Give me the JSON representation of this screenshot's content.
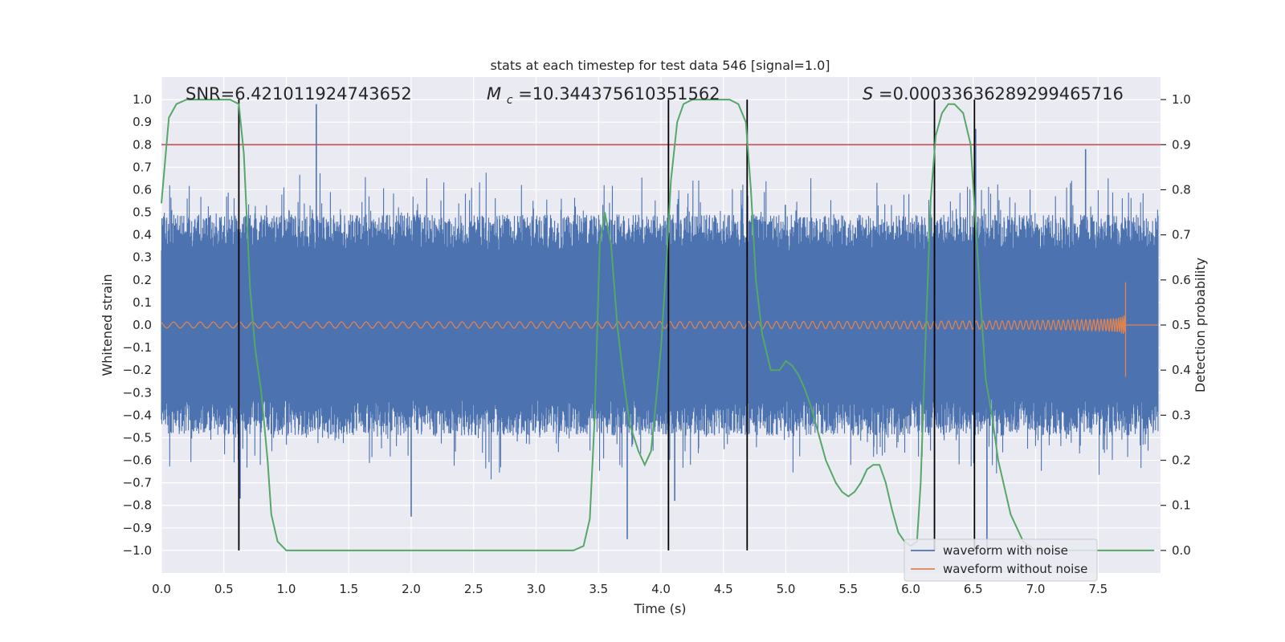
{
  "chart_data": {
    "type": "line",
    "title": "stats at each timestep for test data 546 [signal=1.0]",
    "xlabel": "Time (s)",
    "ylabel": "Whitened strain",
    "y2label": "Detection probability",
    "xlim": [
      0.0,
      8.0
    ],
    "ylim": [
      -1.1,
      1.1
    ],
    "y2lim": [
      -0.05,
      1.05
    ],
    "xticks": [
      0.0,
      0.5,
      1.0,
      1.5,
      2.0,
      2.5,
      3.0,
      3.5,
      4.0,
      4.5,
      5.0,
      5.5,
      6.0,
      6.5,
      7.0,
      7.5
    ],
    "xtick_labels": [
      "0.0",
      "0.5",
      "1.0",
      "1.5",
      "2.0",
      "2.5",
      "3.0",
      "3.5",
      "4.0",
      "4.5",
      "5.0",
      "5.5",
      "6.0",
      "6.5",
      "7.0",
      "7.5"
    ],
    "yticks": [
      1.0,
      0.9,
      0.8,
      0.7,
      0.6,
      0.5,
      0.4,
      0.3,
      0.2,
      0.1,
      0.0,
      -0.1,
      -0.2,
      -0.3,
      -0.4,
      -0.5,
      -0.6,
      -0.7,
      -0.8,
      -0.9,
      -1.0
    ],
    "ytick_labels": [
      "1.0",
      "0.9",
      "0.8",
      "0.7",
      "0.6",
      "0.5",
      "0.4",
      "0.3",
      "0.2",
      "0.1",
      "0.0",
      "−0.1",
      "−0.2",
      "−0.3",
      "−0.4",
      "−0.5",
      "−0.6",
      "−0.7",
      "−0.8",
      "−0.9",
      "−1.0"
    ],
    "y2ticks": [
      1.0,
      0.9,
      0.8,
      0.7,
      0.6,
      0.5,
      0.4,
      0.3,
      0.2,
      0.1,
      0.0
    ],
    "y2tick_labels": [
      "1.0",
      "0.9",
      "0.8",
      "0.7",
      "0.6",
      "0.5",
      "0.4",
      "0.3",
      "0.2",
      "0.1",
      "0.0"
    ],
    "grid": true,
    "annotations": {
      "snr": "SNR=6.421011924743652",
      "mc_symbol": "M",
      "mc_sub": "c",
      "mc_value": "=10.344375610351562",
      "s_symbol": "S",
      "s_value": "=0.00033636289299465716"
    },
    "threshold": 0.9,
    "vlines_x": [
      0.62,
      4.06,
      4.69,
      6.19,
      6.51
    ],
    "series": [
      {
        "name": "waveform with noise",
        "axis": "left",
        "color": "#4c72b0",
        "description": "noise band ~±0.45 with spikes up to ±1.0",
        "spikes": [
          {
            "x": 0.63,
            "y": -0.77
          },
          {
            "x": 1.24,
            "y": 0.98
          },
          {
            "x": 2.0,
            "y": -0.85
          },
          {
            "x": 3.73,
            "y": -0.95
          },
          {
            "x": 4.11,
            "y": -0.78
          },
          {
            "x": 6.52,
            "y": 0.87
          },
          {
            "x": 6.61,
            "y": -1.0
          },
          {
            "x": 7.4,
            "y": 0.78
          }
        ]
      },
      {
        "name": "waveform without noise",
        "axis": "left",
        "color": "#dd8452",
        "description": "chirp growing from ~±0.01 to ~±0.19, ending at 7.72 s",
        "end_time": 7.72,
        "end_amplitude": 0.19
      },
      {
        "name": "detection probability",
        "axis": "right",
        "color": "#55a868",
        "x": [
          0.0,
          0.06,
          0.12,
          0.2,
          0.3,
          0.45,
          0.55,
          0.62,
          0.66,
          0.71,
          0.75,
          0.8,
          0.85,
          0.88,
          0.93,
          1.0,
          1.5,
          2.0,
          2.5,
          3.0,
          3.3,
          3.38,
          3.43,
          3.47,
          3.51,
          3.55,
          3.6,
          3.65,
          3.7,
          3.75,
          3.82,
          3.87,
          3.92,
          3.96,
          4.0,
          4.04,
          4.08,
          4.13,
          4.18,
          4.25,
          4.4,
          4.55,
          4.62,
          4.68,
          4.72,
          4.76,
          4.81,
          4.88,
          4.95,
          5.0,
          5.05,
          5.1,
          5.15,
          5.2,
          5.25,
          5.32,
          5.4,
          5.45,
          5.5,
          5.55,
          5.6,
          5.65,
          5.7,
          5.75,
          5.8,
          5.85,
          5.9,
          5.95,
          6.0,
          6.05,
          6.08,
          6.12,
          6.16,
          6.2,
          6.25,
          6.3,
          6.35,
          6.42,
          6.48,
          6.52,
          6.56,
          6.6,
          6.65,
          6.7,
          6.8,
          6.9,
          7.0,
          7.5,
          7.95
        ],
        "y": [
          0.77,
          0.96,
          0.99,
          1.0,
          1.0,
          1.0,
          1.0,
          0.99,
          0.88,
          0.58,
          0.45,
          0.35,
          0.2,
          0.08,
          0.02,
          0.0,
          0.0,
          0.0,
          0.0,
          0.0,
          0.0,
          0.01,
          0.07,
          0.3,
          0.68,
          0.75,
          0.68,
          0.5,
          0.38,
          0.28,
          0.22,
          0.19,
          0.22,
          0.33,
          0.45,
          0.62,
          0.82,
          0.95,
          0.99,
          1.0,
          1.0,
          1.0,
          0.99,
          0.95,
          0.8,
          0.6,
          0.48,
          0.4,
          0.4,
          0.42,
          0.41,
          0.39,
          0.36,
          0.32,
          0.27,
          0.2,
          0.15,
          0.13,
          0.12,
          0.13,
          0.15,
          0.18,
          0.19,
          0.19,
          0.15,
          0.09,
          0.04,
          0.02,
          0.01,
          0.02,
          0.15,
          0.48,
          0.78,
          0.92,
          0.97,
          0.99,
          0.99,
          0.97,
          0.9,
          0.72,
          0.55,
          0.38,
          0.3,
          0.2,
          0.08,
          0.02,
          0.0,
          0.0,
          0.0
        ]
      }
    ],
    "legend": {
      "position": "lower-right",
      "entries": [
        "waveform with noise",
        "waveform without noise"
      ]
    },
    "colors": {
      "plot_bg": "#eaeaf2",
      "grid": "#ffffff",
      "threshold": "#c44e52",
      "vline": "#000000"
    }
  }
}
